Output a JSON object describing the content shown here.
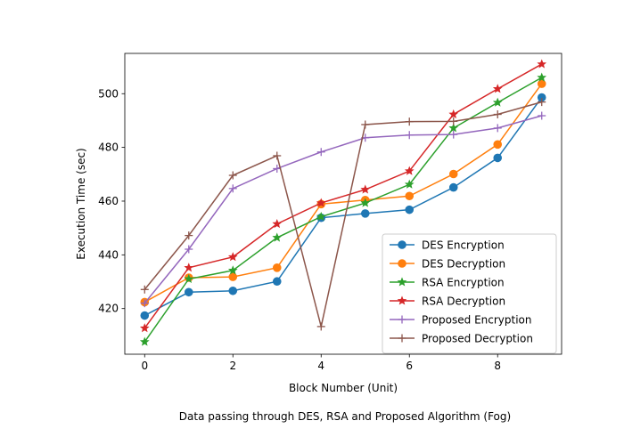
{
  "chart_data": {
    "type": "line",
    "title": "",
    "xlabel": "Block Number (Unit)",
    "ylabel": "Execution Time (sec)",
    "caption": "Data passing through DES, RSA and Proposed Algorithm (Fog)",
    "xlim": [
      -0.45,
      9.45
    ],
    "ylim": [
      403,
      515
    ],
    "xticks": [
      0,
      2,
      4,
      6,
      8
    ],
    "yticks": [
      420,
      440,
      460,
      480,
      500
    ],
    "legend_position": "lower-right",
    "grid": false,
    "x": [
      0,
      1,
      2,
      3,
      4,
      5,
      6,
      7,
      8,
      9
    ],
    "series": [
      {
        "name": "DES Encryption",
        "color": "#1f77b4",
        "marker": "circle",
        "values": [
          417.4,
          426.1,
          426.6,
          430.1,
          453.8,
          455.4,
          456.8,
          465.1,
          476.1,
          498.6
        ]
      },
      {
        "name": "DES Decryption",
        "color": "#ff7f0e",
        "marker": "circle",
        "values": [
          422.4,
          431.5,
          431.8,
          435.2,
          458.9,
          460.4,
          461.9,
          470.1,
          481.1,
          503.7
        ]
      },
      {
        "name": "RSA Encryption",
        "color": "#2ca02c",
        "marker": "star",
        "values": [
          407.6,
          431.0,
          434.2,
          446.4,
          454.2,
          459.3,
          466.2,
          487.2,
          496.7,
          506.0
        ]
      },
      {
        "name": "RSA Decryption",
        "color": "#d62728",
        "marker": "star",
        "values": [
          412.7,
          435.2,
          439.2,
          451.5,
          459.3,
          464.3,
          471.2,
          492.3,
          501.8,
          511.0
        ]
      },
      {
        "name": "Proposed Encryption",
        "color": "#9467bd",
        "marker": "plus",
        "values": [
          422.0,
          442.1,
          464.7,
          472.1,
          478.3,
          483.6,
          484.6,
          484.8,
          487.2,
          491.8
        ]
      },
      {
        "name": "Proposed Decryption",
        "color": "#8c564b",
        "marker": "plus",
        "values": [
          427.1,
          447.2,
          469.6,
          476.9,
          413.3,
          488.5,
          489.6,
          489.7,
          492.3,
          496.9
        ]
      }
    ]
  }
}
